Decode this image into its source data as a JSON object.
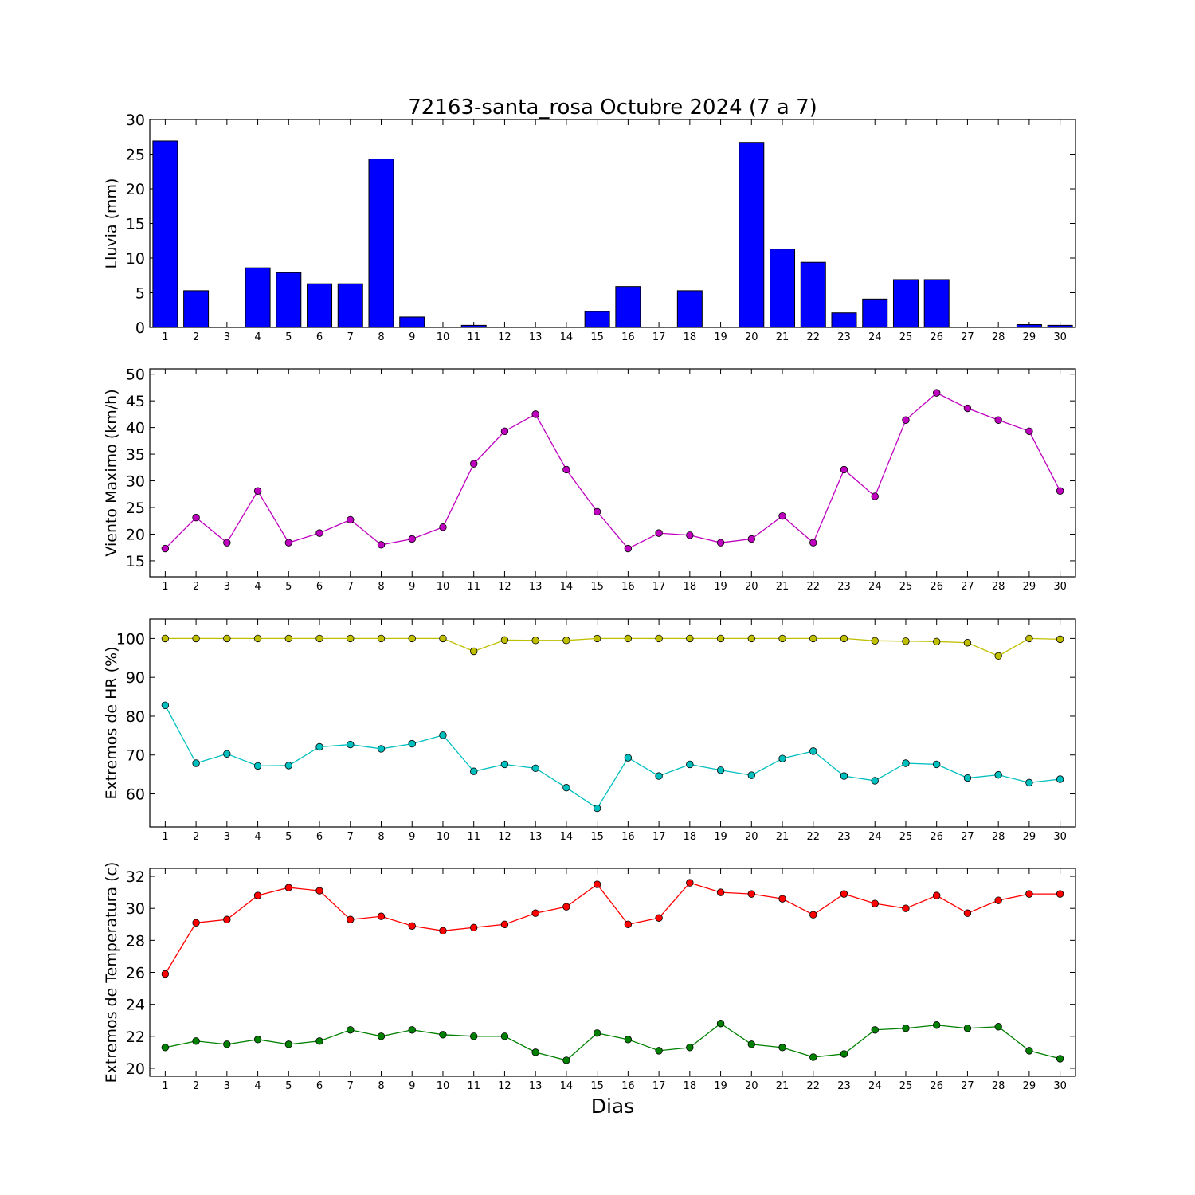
{
  "chart_data": {
    "type": "composite",
    "title": "72163-santa_rosa Octubre 2024  (7 a 7)",
    "xlabel": "Dias",
    "x": [
      1,
      2,
      3,
      4,
      5,
      6,
      7,
      8,
      9,
      10,
      11,
      12,
      13,
      14,
      15,
      16,
      17,
      18,
      19,
      20,
      21,
      22,
      23,
      24,
      25,
      26,
      27,
      28,
      29,
      30
    ],
    "panels": [
      {
        "type": "bar",
        "ylabel": "Lluvia (mm)",
        "ylim": [
          0,
          30
        ],
        "yticks": [
          0,
          5,
          10,
          15,
          20,
          25,
          30
        ],
        "series": [
          {
            "color": "#0000ff",
            "values": [
              26.9,
              5.3,
              0,
              8.6,
              7.9,
              6.3,
              6.3,
              24.3,
              1.5,
              0,
              0.3,
              0,
              0,
              0,
              2.3,
              5.9,
              0,
              5.3,
              0,
              26.7,
              11.3,
              9.4,
              2.1,
              4.1,
              6.9,
              6.9,
              0,
              0,
              0.4,
              0.3
            ]
          }
        ]
      },
      {
        "type": "line",
        "ylabel": "Viento Maximo (km/h)",
        "ylim": [
          12,
          51
        ],
        "yticks": [
          15,
          20,
          25,
          30,
          35,
          40,
          45,
          50
        ],
        "series": [
          {
            "color": "#bf00bf",
            "values": [
              17.3,
              23.1,
              18.4,
              28.1,
              18.4,
              20.2,
              22.7,
              18.0,
              19.1,
              21.3,
              33.2,
              39.3,
              42.5,
              32.1,
              24.2,
              17.3,
              20.2,
              19.8,
              18.4,
              19.1,
              23.4,
              18.4,
              32.1,
              27.1,
              41.4,
              46.5,
              43.6,
              41.4,
              39.3,
              28.1
            ]
          }
        ]
      },
      {
        "type": "line",
        "ylabel": "Extremos de HR (%)",
        "ylim": [
          51.5,
          105
        ],
        "yticks": [
          60,
          70,
          80,
          90,
          100
        ],
        "series": [
          {
            "color": "#bfbf00",
            "values": [
              100,
              100,
              100,
              100,
              100,
              100,
              100,
              100,
              100,
              100,
              96.7,
              99.6,
              99.5,
              99.5,
              100,
              100,
              100,
              100,
              100,
              100,
              100,
              100,
              100,
              99.4,
              99.3,
              99.2,
              98.9,
              95.5,
              100,
              99.8
            ]
          },
          {
            "color": "#00bfbf",
            "values": [
              82.8,
              67.9,
              70.3,
              67.2,
              67.3,
              72.1,
              72.7,
              71.6,
              72.9,
              75.1,
              65.8,
              67.6,
              66.6,
              61.6,
              56.3,
              69.3,
              64.6,
              67.6,
              66.1,
              64.8,
              69.1,
              71.0,
              64.6,
              63.4,
              67.9,
              67.6,
              64.1,
              64.9,
              62.9,
              63.8
            ]
          }
        ]
      },
      {
        "type": "line",
        "ylabel": "Extremos de Temperatura (c)",
        "ylim": [
          19.5,
          32.5
        ],
        "yticks": [
          20,
          22,
          24,
          26,
          28,
          30,
          32
        ],
        "series": [
          {
            "color": "#ff0000",
            "values": [
              25.9,
              29.1,
              29.3,
              30.8,
              31.3,
              31.1,
              29.3,
              29.5,
              28.9,
              28.6,
              28.8,
              29.0,
              29.7,
              30.1,
              31.5,
              29.0,
              29.4,
              31.6,
              31.0,
              30.9,
              30.6,
              29.6,
              30.9,
              30.3,
              30.0,
              30.8,
              29.7,
              30.5,
              30.9,
              30.9
            ]
          },
          {
            "color": "#008000",
            "values": [
              21.3,
              21.7,
              21.5,
              21.8,
              21.5,
              21.7,
              22.4,
              22.0,
              22.4,
              22.1,
              22.0,
              22.0,
              21.0,
              20.5,
              22.2,
              21.8,
              21.1,
              21.3,
              22.8,
              21.5,
              21.3,
              20.7,
              20.9,
              22.4,
              22.5,
              22.7,
              22.5,
              22.6,
              21.1,
              20.6
            ]
          }
        ]
      }
    ],
    "grid": false,
    "legend": "none"
  }
}
